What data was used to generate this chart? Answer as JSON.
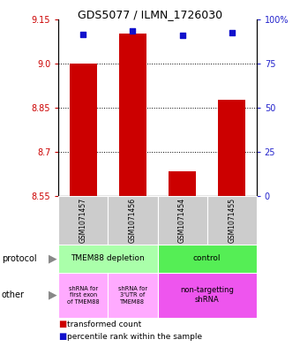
{
  "title": "GDS5077 / ILMN_1726030",
  "samples": [
    "GSM1071457",
    "GSM1071456",
    "GSM1071454",
    "GSM1071455"
  ],
  "transformed_counts": [
    9.0,
    9.1,
    8.635,
    8.875
  ],
  "percentile_ranks": [
    91.5,
    93.5,
    91.0,
    92.5
  ],
  "ylim": [
    8.55,
    9.15
  ],
  "yticks_left": [
    9.15,
    9.0,
    8.85,
    8.7,
    8.55
  ],
  "yticks_right_vals": [
    100,
    75,
    50,
    25,
    0
  ],
  "grid_vals": [
    9.0,
    8.85,
    8.7
  ],
  "bar_color": "#cc0000",
  "dot_color": "#1111cc",
  "bar_bottom": 8.55,
  "bar_width": 0.55,
  "left_label_color": "#cc0000",
  "right_label_color": "#2222cc",
  "legend_text1": "transformed count",
  "legend_text2": "percentile rank within the sample"
}
